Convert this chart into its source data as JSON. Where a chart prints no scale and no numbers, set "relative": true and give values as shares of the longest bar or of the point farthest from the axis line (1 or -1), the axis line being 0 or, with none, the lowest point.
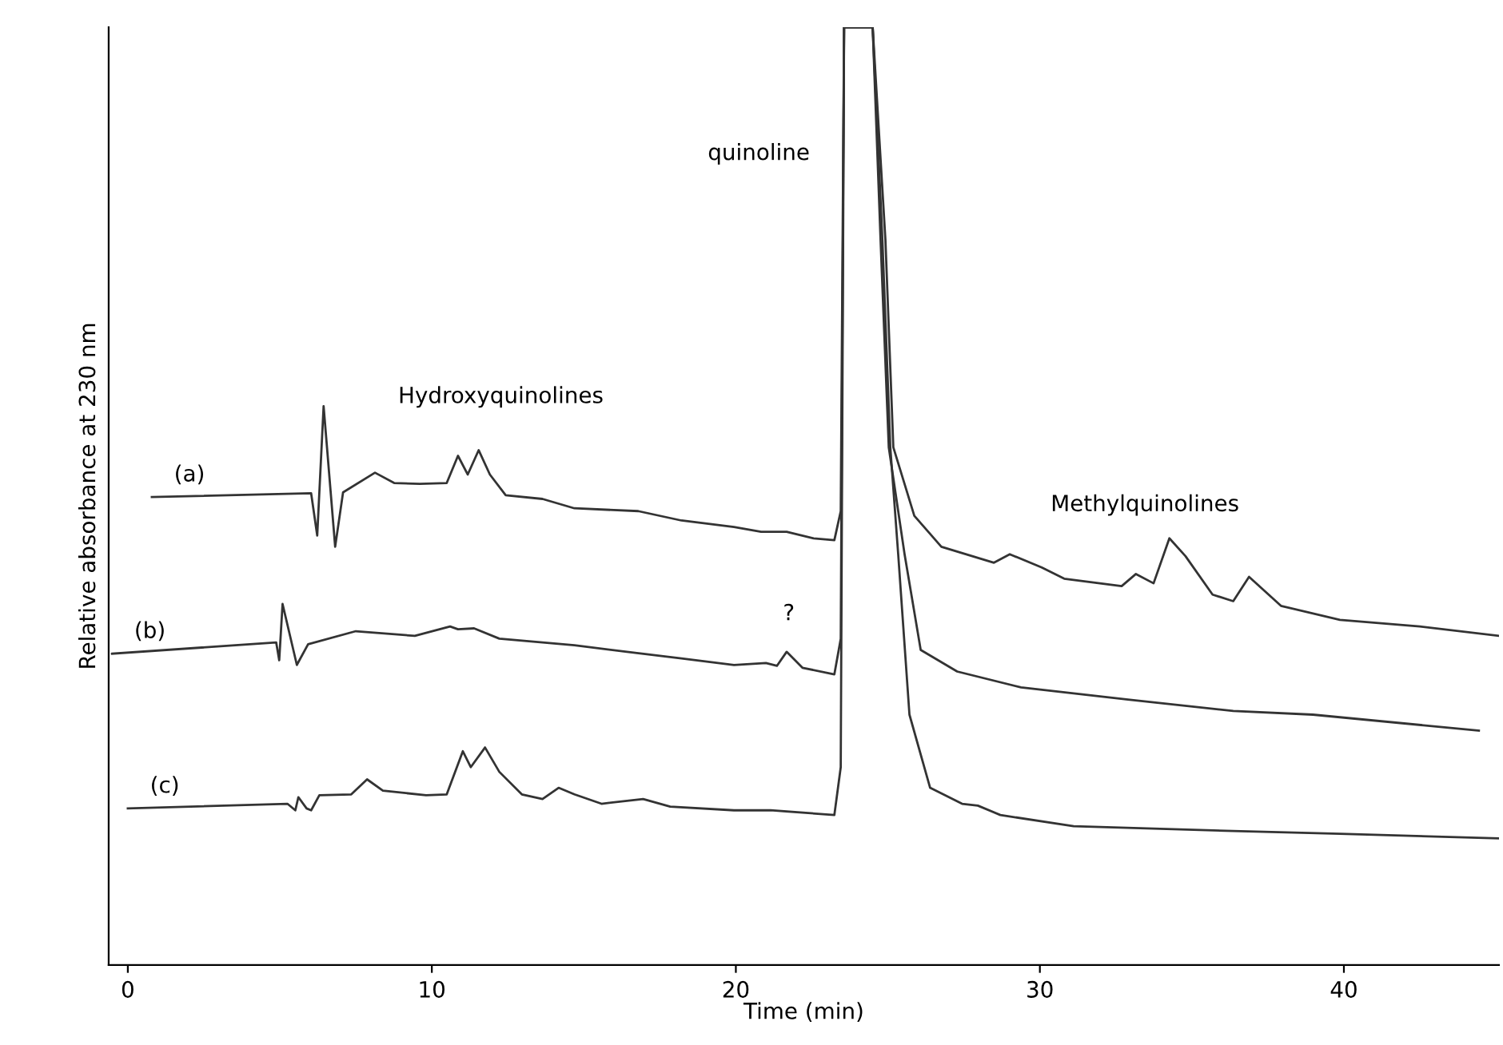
{
  "chart_data": {
    "type": "line",
    "relative": true,
    "xlabel": "Time (min)",
    "ylabel": "Relative absorbance at 230 nm",
    "xlim": [
      -0.63,
      45.1
    ],
    "xticks": [
      0,
      10,
      20,
      30,
      40
    ],
    "grid": false,
    "legend": false,
    "marker": "none",
    "line_style": "solid",
    "series": [
      {
        "name": "(a)",
        "color": "#333333",
        "x": [
          0.79,
          6.03,
          6.23,
          6.44,
          6.82,
          7.08,
          8.13,
          8.76,
          9.6,
          10.49,
          10.86,
          11.18,
          11.54,
          11.91,
          12.43,
          13.64,
          14.69,
          16.79,
          18.21,
          19.94,
          20.83,
          21.67,
          22.56,
          23.24,
          23.45,
          23.56,
          24.5,
          24.92,
          25.18,
          25.87,
          26.76,
          28.49,
          29.01,
          30.06,
          30.8,
          32.69,
          33.16,
          33.74,
          34.26,
          34.79,
          35.68,
          36.36,
          36.88,
          37.93,
          39.87,
          42.5,
          45.1
        ],
        "values": [
          0.499,
          0.503,
          0.458,
          0.596,
          0.446,
          0.504,
          0.525,
          0.514,
          0.513,
          0.514,
          0.543,
          0.523,
          0.549,
          0.523,
          0.501,
          0.497,
          0.487,
          0.484,
          0.474,
          0.467,
          0.462,
          0.462,
          0.455,
          0.453,
          0.484,
          1,
          1,
          0.773,
          0.552,
          0.479,
          0.446,
          0.429,
          0.438,
          0.424,
          0.412,
          0.404,
          0.417,
          0.407,
          0.455,
          0.436,
          0.395,
          0.388,
          0.414,
          0.383,
          0.368,
          0.361,
          0.351
        ]
      },
      {
        "name": "(b)",
        "color": "#333333",
        "x": [
          -0.52,
          4.88,
          4.98,
          5.09,
          5.56,
          5.93,
          7.5,
          9.44,
          10.6,
          10.86,
          11.39,
          12.22,
          14.69,
          16.42,
          18.21,
          19.94,
          20.99,
          21.35,
          21.67,
          22.19,
          23.24,
          23.45,
          23.56,
          24.5,
          24.76,
          25.03,
          25.55,
          26.08,
          27.28,
          29.38,
          32.9,
          36.36,
          38.98,
          44.44
        ],
        "values": [
          0.332,
          0.344,
          0.325,
          0.385,
          0.32,
          0.342,
          0.356,
          0.351,
          0.361,
          0.358,
          0.359,
          0.348,
          0.341,
          0.334,
          0.327,
          0.32,
          0.322,
          0.319,
          0.334,
          0.317,
          0.31,
          0.348,
          1,
          1,
          0.773,
          0.552,
          0.438,
          0.336,
          0.313,
          0.296,
          0.283,
          0.271,
          0.267,
          0.25
        ]
      },
      {
        "name": "(c)",
        "color": "#333333",
        "x": [
          0,
          5.25,
          5.51,
          5.61,
          5.88,
          6.03,
          6.3,
          7.35,
          7.87,
          8.39,
          9.81,
          10.49,
          11.02,
          11.28,
          11.75,
          12.22,
          12.96,
          13.64,
          14.17,
          14.69,
          15.58,
          16.95,
          17.84,
          19.94,
          21.14,
          23.24,
          23.45,
          23.56,
          24.5,
          24.82,
          25.08,
          25.34,
          25.71,
          26.39,
          27.44,
          27.96,
          28.7,
          31.11,
          36.36,
          39.87,
          45.1
        ],
        "values": [
          0.167,
          0.172,
          0.165,
          0.179,
          0.167,
          0.165,
          0.181,
          0.182,
          0.198,
          0.186,
          0.181,
          0.182,
          0.228,
          0.211,
          0.232,
          0.206,
          0.182,
          0.177,
          0.189,
          0.182,
          0.172,
          0.177,
          0.169,
          0.165,
          0.165,
          0.16,
          0.211,
          1,
          1,
          0.773,
          0.552,
          0.438,
          0.267,
          0.189,
          0.172,
          0.17,
          0.16,
          0.148,
          0.143,
          0.14,
          0.135
        ]
      }
    ],
    "annotations": [
      {
        "text": "Hydroxyquinolines",
        "x": 11.54,
        "y": 0.549
      },
      {
        "text": "quinoline",
        "x": 23.53,
        "y": 0.865
      },
      {
        "text": "Methylquinolines",
        "x": 34.26,
        "y": 0.455
      },
      {
        "text": "?",
        "x": 21.67,
        "y": 0.334
      }
    ]
  }
}
